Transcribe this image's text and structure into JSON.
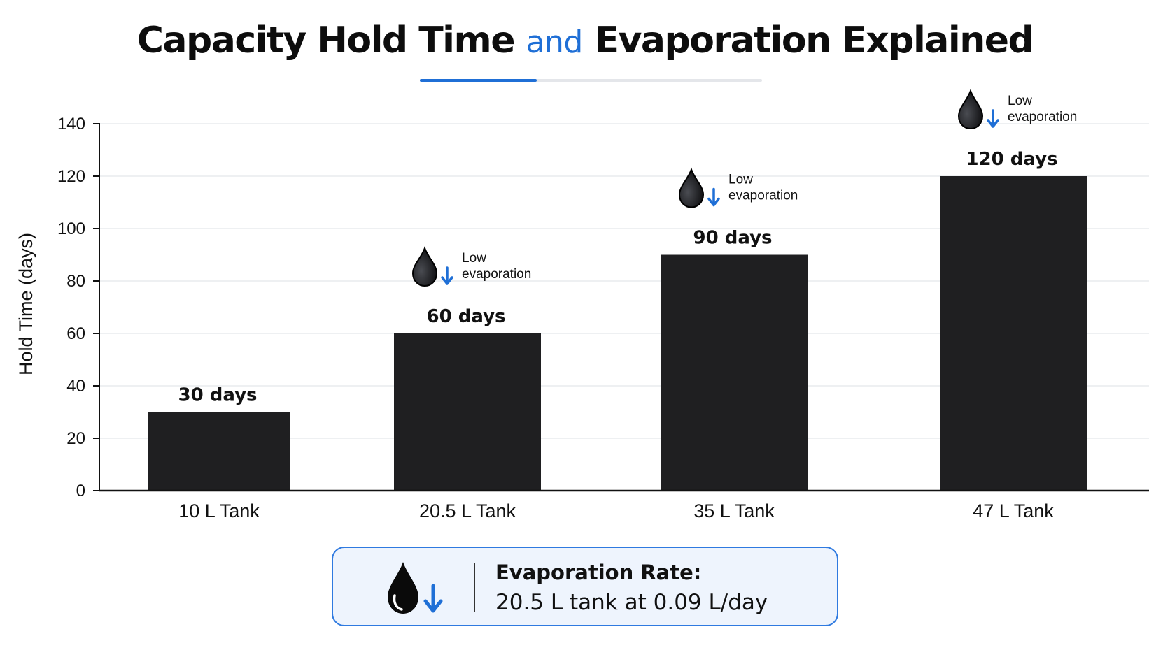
{
  "title": {
    "part1": "Capacity Hold Time",
    "accent": "and",
    "part2": "Evaporation Explained"
  },
  "chart_data": {
    "type": "bar",
    "title": "Capacity Hold Time and Evaporation Explained",
    "xlabel": "",
    "ylabel": "Hold Time (days)",
    "ylim": [
      0,
      140
    ],
    "yticks": [
      0,
      20,
      40,
      60,
      80,
      100,
      120,
      140
    ],
    "grid": true,
    "categories": [
      "10 L Tank",
      "20.5 L Tank",
      "35 L Tank",
      "47 L Tank"
    ],
    "values": [
      30,
      60,
      90,
      120
    ],
    "value_labels": [
      "30 days",
      "60 days",
      "90 days",
      "120 days"
    ],
    "annotations": [
      null,
      {
        "line1": "Low",
        "line2": "evaporation"
      },
      {
        "line1": "Low",
        "line2": "evaporation"
      },
      {
        "line1": "Low",
        "line2": "evaporation"
      }
    ],
    "bar_color": "#1f1f21",
    "accent_color": "#1f6fd6"
  },
  "callout": {
    "heading": "Evaporation Rate:",
    "text": "20.5 L tank at 0.09 L/day",
    "icon": "water-drop-down-icon"
  }
}
